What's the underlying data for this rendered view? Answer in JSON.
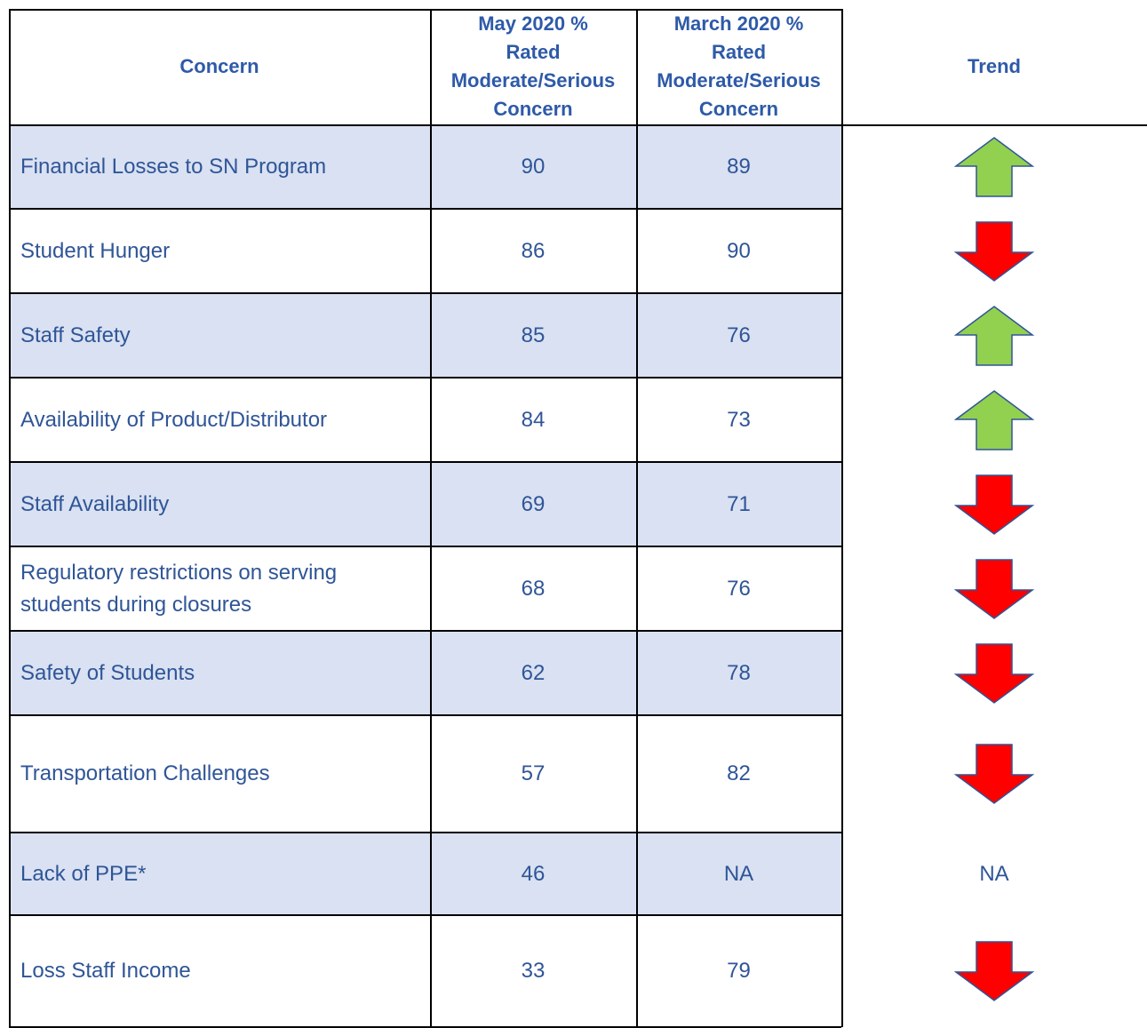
{
  "table": {
    "header": [
      [
        "Concern"
      ],
      [
        "May 2020 %",
        "Rated",
        "Moderate/Serious",
        "Concern"
      ],
      [
        "March 2020 %",
        "Rated",
        "Moderate/Serious",
        "Concern"
      ],
      [
        "Trend"
      ]
    ],
    "rows": [
      {
        "concern": "Financial Losses to SN Program",
        "may": 90,
        "march": 89
      },
      {
        "concern": "Student Hunger",
        "may": 86,
        "march": 90
      },
      {
        "concern": "Staff Safety",
        "may": 85,
        "march": 76
      },
      {
        "concern": "Availability of Product/Distributor",
        "may": 84,
        "march": 73
      },
      {
        "concern": "Staff Availability",
        "may": 69,
        "march": 71
      },
      {
        "concern": "Regulatory restrictions on serving students during closures",
        "may": 68,
        "march": 76
      },
      {
        "concern": "Safety of Students",
        "may": 62,
        "march": 78
      },
      {
        "concern": "Transportation Challenges",
        "may": 57,
        "march": 82
      },
      {
        "concern": "Lack of PPE*",
        "may": 46,
        "march": "NA",
        "trend": "NA"
      },
      {
        "concern": "Loss Staff Income",
        "may": 33,
        "march": 79
      }
    ]
  }
}
